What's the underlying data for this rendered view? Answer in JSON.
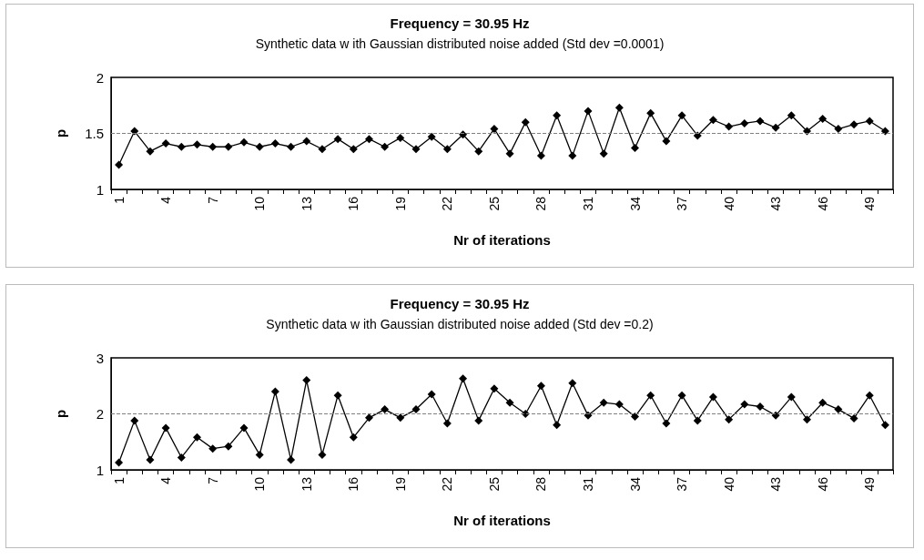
{
  "chart_data": [
    {
      "type": "line",
      "title": "Frequency = 30.95 Hz",
      "subtitle": "Synthetic data w ith Gaussian distributed noise added (Std dev =0.0001)",
      "xlabel": "Nr of iterations",
      "ylabel": "p",
      "categories": [
        "1",
        null,
        null,
        "4",
        null,
        null,
        "7",
        null,
        null,
        "10",
        null,
        null,
        "13",
        null,
        null,
        "16",
        null,
        null,
        "19",
        null,
        null,
        "22",
        null,
        null,
        "25",
        null,
        null,
        "28",
        null,
        null,
        "31",
        null,
        null,
        "34",
        null,
        null,
        "37",
        null,
        null,
        "40",
        null,
        null,
        "43",
        null,
        null,
        "46",
        null,
        null,
        "49",
        null
      ],
      "series": [
        {
          "color": "#000000",
          "values": [
            1.22,
            1.52,
            1.34,
            1.41,
            1.38,
            1.4,
            1.38,
            1.38,
            1.42,
            1.38,
            1.41,
            1.38,
            1.43,
            1.36,
            1.45,
            1.36,
            1.45,
            1.38,
            1.46,
            1.36,
            1.47,
            1.36,
            1.49,
            1.34,
            1.54,
            1.32,
            1.6,
            1.3,
            1.66,
            1.3,
            1.7,
            1.32,
            1.73,
            1.37,
            1.68,
            1.43,
            1.66,
            1.48,
            1.62,
            1.56,
            1.59,
            1.61,
            1.55,
            1.66,
            1.52,
            1.63,
            1.54,
            1.58,
            1.61,
            1.52
          ]
        }
      ],
      "ylim": [
        1,
        2
      ],
      "yticks": [
        1,
        1.5,
        2
      ],
      "grid": false,
      "marker": "diamond",
      "line_style": "solid",
      "ref_lines": [
        {
          "axis": "y",
          "value": 1.5,
          "color": "#808080",
          "line_style": "dashed"
        }
      ]
    },
    {
      "type": "line",
      "title": "Frequency = 30.95 Hz",
      "subtitle": "Synthetic data w ith Gaussian distributed noise added (Std dev =0.2)",
      "xlabel": "Nr of iterations",
      "ylabel": "p",
      "categories": [
        "1",
        null,
        null,
        "4",
        null,
        null,
        "7",
        null,
        null,
        "10",
        null,
        null,
        "13",
        null,
        null,
        "16",
        null,
        null,
        "19",
        null,
        null,
        "22",
        null,
        null,
        "25",
        null,
        null,
        "28",
        null,
        null,
        "31",
        null,
        null,
        "34",
        null,
        null,
        "37",
        null,
        null,
        "40",
        null,
        null,
        "43",
        null,
        null,
        "46",
        null,
        null,
        "49",
        null
      ],
      "series": [
        {
          "color": "#000000",
          "values": [
            1.13,
            1.88,
            1.18,
            1.75,
            1.22,
            1.58,
            1.38,
            1.42,
            1.75,
            1.27,
            2.4,
            1.18,
            2.6,
            1.27,
            2.33,
            1.58,
            1.93,
            2.08,
            1.93,
            2.08,
            2.35,
            1.83,
            2.63,
            1.88,
            2.45,
            2.2,
            2.0,
            2.5,
            1.8,
            2.55,
            1.97,
            2.2,
            2.17,
            1.95,
            2.33,
            1.83,
            2.33,
            1.88,
            2.3,
            1.9,
            2.17,
            2.13,
            1.97,
            2.3,
            1.9,
            2.2,
            2.08,
            1.92,
            2.33,
            1.8
          ]
        }
      ],
      "ylim": [
        1,
        3
      ],
      "yticks": [
        1,
        2,
        3
      ],
      "grid": false,
      "marker": "diamond",
      "line_style": "solid",
      "ref_lines": [
        {
          "axis": "y",
          "value": 2,
          "color": "#808080",
          "line_style": "dashed"
        }
      ]
    }
  ]
}
